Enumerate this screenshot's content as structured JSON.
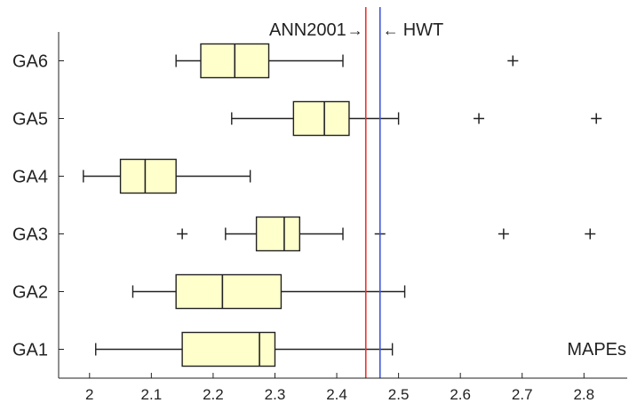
{
  "chart_data": {
    "type": "boxplot",
    "orientation": "horizontal",
    "title": "",
    "xlabel": "",
    "ylabel": "",
    "corner_label": "MAPEs",
    "xlim": [
      1.95,
      2.87
    ],
    "x_ticks": [
      "2",
      "2.1",
      "2.2",
      "2.3",
      "2.4",
      "2.5",
      "2.6",
      "2.7",
      "2.8"
    ],
    "x_tick_values": [
      2.0,
      2.1,
      2.2,
      2.3,
      2.4,
      2.5,
      2.6,
      2.7,
      2.8
    ],
    "categories": [
      "GA1",
      "GA2",
      "GA3",
      "GA4",
      "GA5",
      "GA6"
    ],
    "boxes": [
      {
        "label": "GA1",
        "whisker_low": 2.01,
        "q1": 2.15,
        "median": 2.275,
        "q3": 2.3,
        "whisker_high": 2.49,
        "outliers": []
      },
      {
        "label": "GA2",
        "whisker_low": 2.07,
        "q1": 2.14,
        "median": 2.215,
        "q3": 2.31,
        "whisker_high": 2.51,
        "outliers": []
      },
      {
        "label": "GA3",
        "whisker_low": 2.22,
        "q1": 2.27,
        "median": 2.315,
        "q3": 2.34,
        "whisker_high": 2.41,
        "outliers": [
          2.15,
          2.47,
          2.67,
          2.81
        ]
      },
      {
        "label": "GA4",
        "whisker_low": 1.99,
        "q1": 2.05,
        "median": 2.09,
        "q3": 2.14,
        "whisker_high": 2.26,
        "outliers": []
      },
      {
        "label": "GA5",
        "whisker_low": 2.23,
        "q1": 2.33,
        "median": 2.38,
        "q3": 2.42,
        "whisker_high": 2.5,
        "outliers": [
          2.63,
          2.82
        ]
      },
      {
        "label": "GA6",
        "whisker_low": 2.14,
        "q1": 2.18,
        "median": 2.235,
        "q3": 2.29,
        "whisker_high": 2.41,
        "outliers": [
          2.685
        ]
      }
    ],
    "reference_lines": [
      {
        "label": "ANN2001",
        "value": 2.447,
        "color": "#e8322b",
        "arrow": "→"
      },
      {
        "label": "HWT",
        "value": 2.47,
        "color": "#3d55d6",
        "arrow": "←"
      }
    ],
    "box_fill": "#ffffcc",
    "grid": false
  }
}
